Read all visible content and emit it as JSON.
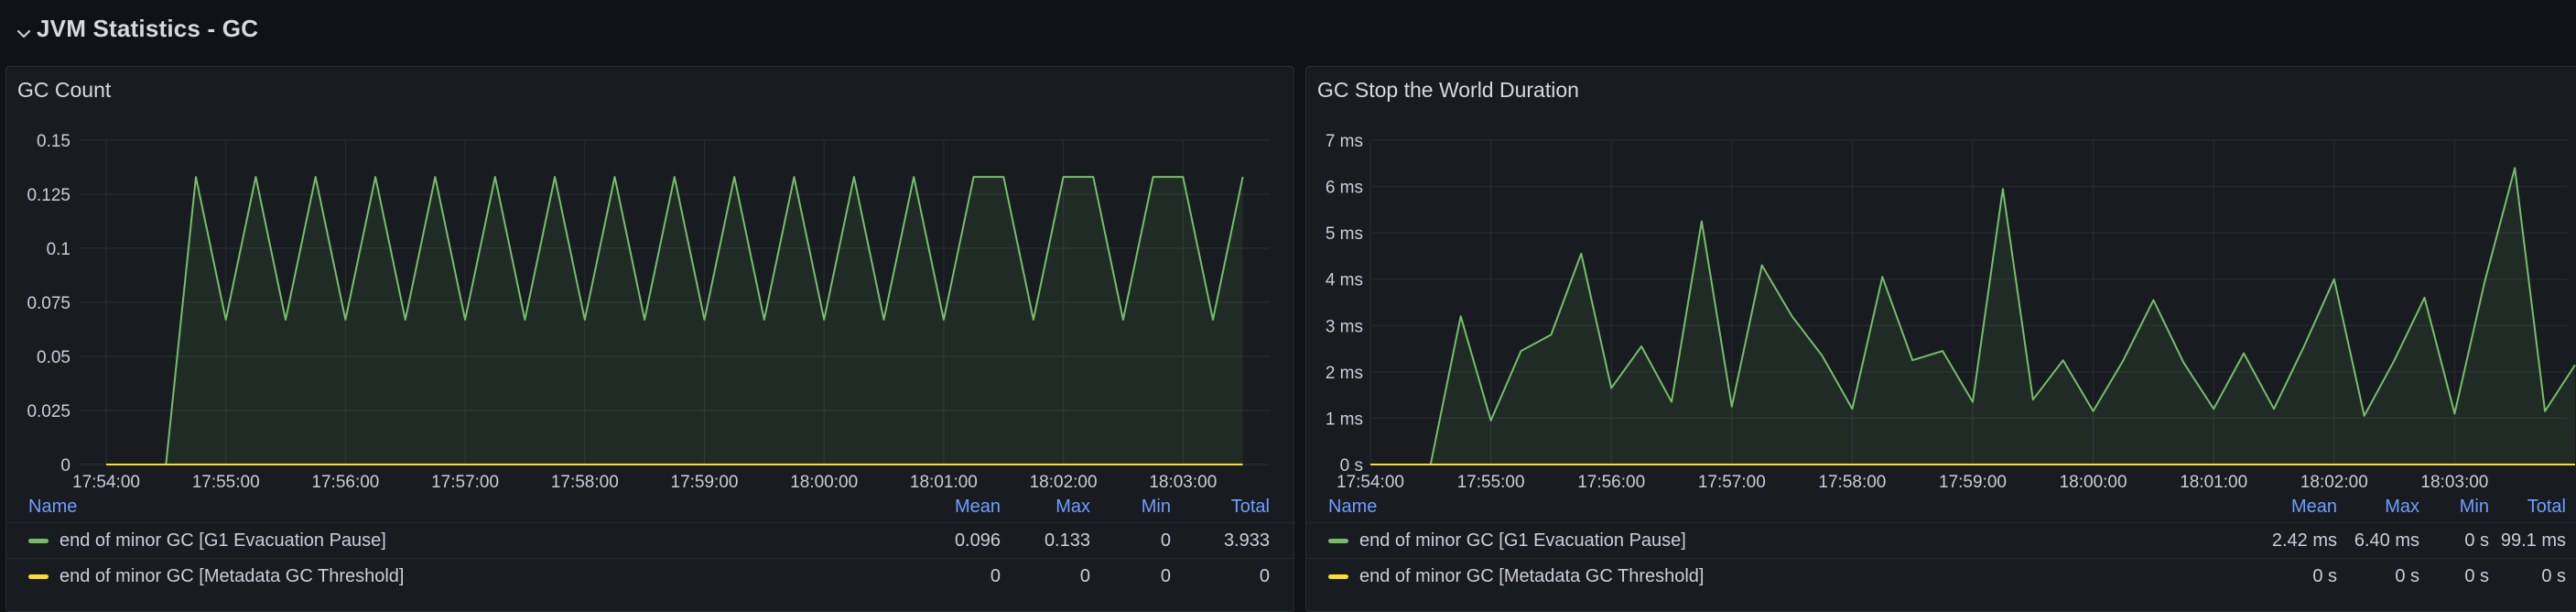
{
  "row": {
    "title": "JVM Statistics - GC"
  },
  "colors": {
    "series_green": "#73bf69",
    "series_yellow": "#fade2a",
    "legend_header": "#6e9fff"
  },
  "panels": [
    {
      "title": "GC Count",
      "legend": {
        "headers": {
          "name": "Name",
          "mean": "Mean",
          "max": "Max",
          "min": "Min",
          "total": "Total"
        },
        "rows": [
          {
            "name": "end of minor GC [G1 Evacuation Pause]",
            "color": "#73bf69",
            "mean": "0.096",
            "max": "0.133",
            "min": "0",
            "total": "3.933"
          },
          {
            "name": "end of minor GC [Metadata GC Threshold]",
            "color": "#fade2a",
            "mean": "0",
            "max": "0",
            "min": "0",
            "total": "0"
          }
        ]
      }
    },
    {
      "title": "GC Stop the World Duration",
      "legend": {
        "headers": {
          "name": "Name",
          "mean": "Mean",
          "max": "Max",
          "min": "Min",
          "total": "Total"
        },
        "rows": [
          {
            "name": "end of minor GC [G1 Evacuation Pause]",
            "color": "#73bf69",
            "mean": "2.42 ms",
            "max": "6.40 ms",
            "min": "0 s",
            "total": "99.1 ms"
          },
          {
            "name": "end of minor GC [Metadata GC Threshold]",
            "color": "#fade2a",
            "mean": "0 s",
            "max": "0 s",
            "min": "0 s",
            "total": "0 s"
          }
        ]
      }
    }
  ],
  "chart_data": [
    {
      "type": "area",
      "title": "GC Count",
      "ylim": [
        0,
        0.15
      ],
      "y_ticks": [
        "0",
        "0.025",
        "0.05",
        "0.075",
        "0.1",
        "0.125",
        "0.15"
      ],
      "y_tick_values": [
        0,
        0.025,
        0.05,
        0.075,
        0.1,
        0.125,
        0.15
      ],
      "x_range": [
        "17:54:00",
        "18:03:45"
      ],
      "x_ticks": [
        "17:54:00",
        "17:55:00",
        "17:56:00",
        "17:57:00",
        "17:58:00",
        "17:59:00",
        "18:00:00",
        "18:01:00",
        "18:02:00",
        "18:03:00"
      ],
      "grid": true,
      "series": [
        {
          "name": "end of minor GC [G1 Evacuation Pause]",
          "color": "#73bf69",
          "points": [
            [
              "17:54:00",
              0
            ],
            [
              "17:54:30",
              0
            ],
            [
              "17:54:45",
              0.133
            ],
            [
              "17:55:00",
              0.067
            ],
            [
              "17:55:15",
              0.133
            ],
            [
              "17:55:30",
              0.067
            ],
            [
              "17:55:45",
              0.133
            ],
            [
              "17:56:00",
              0.067
            ],
            [
              "17:56:15",
              0.133
            ],
            [
              "17:56:30",
              0.067
            ],
            [
              "17:56:45",
              0.133
            ],
            [
              "17:57:00",
              0.067
            ],
            [
              "17:57:15",
              0.133
            ],
            [
              "17:57:30",
              0.067
            ],
            [
              "17:57:45",
              0.133
            ],
            [
              "17:58:00",
              0.067
            ],
            [
              "17:58:15",
              0.133
            ],
            [
              "17:58:30",
              0.067
            ],
            [
              "17:58:45",
              0.133
            ],
            [
              "17:59:00",
              0.067
            ],
            [
              "17:59:15",
              0.133
            ],
            [
              "17:59:30",
              0.067
            ],
            [
              "17:59:45",
              0.133
            ],
            [
              "18:00:00",
              0.067
            ],
            [
              "18:00:15",
              0.133
            ],
            [
              "18:00:30",
              0.067
            ],
            [
              "18:00:45",
              0.133
            ],
            [
              "18:01:00",
              0.067
            ],
            [
              "18:01:15",
              0.133
            ],
            [
              "18:01:30",
              0.133
            ],
            [
              "18:01:45",
              0.067
            ],
            [
              "18:02:00",
              0.133
            ],
            [
              "18:02:15",
              0.133
            ],
            [
              "18:02:30",
              0.067
            ],
            [
              "18:02:45",
              0.133
            ],
            [
              "18:03:00",
              0.133
            ],
            [
              "18:03:15",
              0.067
            ],
            [
              "18:03:30",
              0.133
            ]
          ]
        },
        {
          "name": "end of minor GC [Metadata GC Threshold]",
          "color": "#fade2a",
          "points": [
            [
              "17:54:00",
              0
            ],
            [
              "18:03:30",
              0
            ]
          ]
        }
      ]
    },
    {
      "type": "area",
      "title": "GC Stop the World Duration",
      "ylim": [
        0,
        7
      ],
      "y_ticks": [
        "0 s",
        "1 ms",
        "2 ms",
        "3 ms",
        "4 ms",
        "5 ms",
        "6 ms",
        "7 ms"
      ],
      "y_tick_values": [
        0,
        1,
        2,
        3,
        4,
        5,
        6,
        7
      ],
      "x_range": [
        "17:54:00",
        "18:03:45"
      ],
      "x_ticks": [
        "17:54:00",
        "17:55:00",
        "17:56:00",
        "17:57:00",
        "17:58:00",
        "17:59:00",
        "18:00:00",
        "18:01:00",
        "18:02:00",
        "18:03:00"
      ],
      "grid": true,
      "series": [
        {
          "name": "end of minor GC [G1 Evacuation Pause]",
          "color": "#73bf69",
          "points": [
            [
              "17:54:00",
              0
            ],
            [
              "17:54:30",
              0
            ],
            [
              "17:54:45",
              3.2
            ],
            [
              "17:55:00",
              0.95
            ],
            [
              "17:55:15",
              2.45
            ],
            [
              "17:55:30",
              2.8
            ],
            [
              "17:55:45",
              4.55
            ],
            [
              "17:56:00",
              1.65
            ],
            [
              "17:56:15",
              2.55
            ],
            [
              "17:56:30",
              1.35
            ],
            [
              "17:56:45",
              5.25
            ],
            [
              "17:57:00",
              1.25
            ],
            [
              "17:57:15",
              4.3
            ],
            [
              "17:57:30",
              3.2
            ],
            [
              "17:57:45",
              2.35
            ],
            [
              "17:58:00",
              1.2
            ],
            [
              "17:58:15",
              4.05
            ],
            [
              "17:58:30",
              2.25
            ],
            [
              "17:58:45",
              2.45
            ],
            [
              "17:59:00",
              1.35
            ],
            [
              "17:59:15",
              5.95
            ],
            [
              "17:59:30",
              1.4
            ],
            [
              "17:59:45",
              2.25
            ],
            [
              "18:00:00",
              1.15
            ],
            [
              "18:00:15",
              2.25
            ],
            [
              "18:00:30",
              3.55
            ],
            [
              "18:00:45",
              2.2
            ],
            [
              "18:01:00",
              1.2
            ],
            [
              "18:01:15",
              2.4
            ],
            [
              "18:01:30",
              1.2
            ],
            [
              "18:01:45",
              2.55
            ],
            [
              "18:02:00",
              4.0
            ],
            [
              "18:02:15",
              1.05
            ],
            [
              "18:02:30",
              2.25
            ],
            [
              "18:02:45",
              3.6
            ],
            [
              "18:03:00",
              1.1
            ],
            [
              "18:03:15",
              3.95
            ],
            [
              "18:03:30",
              6.4
            ],
            [
              "18:03:45",
              1.15
            ],
            [
              "18:04:00",
              2.15
            ]
          ]
        },
        {
          "name": "end of minor GC [Metadata GC Threshold]",
          "color": "#fade2a",
          "points": [
            [
              "17:54:00",
              0
            ],
            [
              "18:04:00",
              0
            ]
          ]
        }
      ]
    }
  ]
}
